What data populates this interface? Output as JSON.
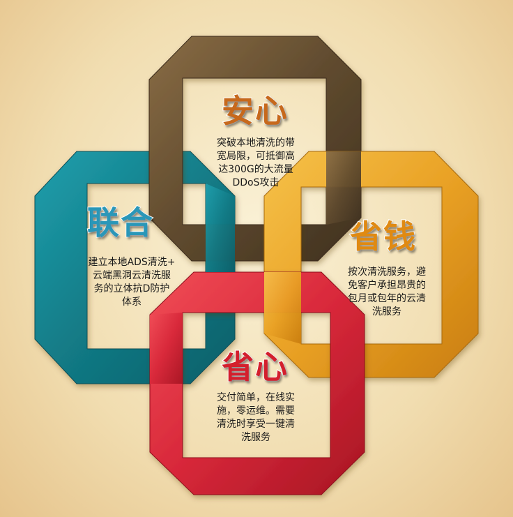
{
  "colors": {
    "background": "#f3e2bb",
    "brown": "#6b5233",
    "teal": "#17838f",
    "gold": "#eaa62a",
    "red": "#d92b3a"
  },
  "blocks": {
    "security": {
      "title": "安心",
      "lines": [
        "突破本地清洗的带",
        "宽局限，可抵御高",
        "达300G的大流量",
        "DDoS攻击"
      ]
    },
    "union": {
      "title": "联合",
      "lines": [
        "建立本地ADS清洗+",
        "云端黑洞云清洗服",
        "务的立体抗D防护",
        "体系"
      ]
    },
    "savings": {
      "title": "省钱",
      "lines": [
        "按次清洗服务，避",
        "免客户承担昂贵的",
        "包月或包年的云清",
        "洗服务"
      ]
    },
    "ease": {
      "title": "省心",
      "lines": [
        "交付简单，在线实",
        "施，零运维。需要",
        "清洗时享受一键清",
        "洗服务"
      ]
    }
  }
}
